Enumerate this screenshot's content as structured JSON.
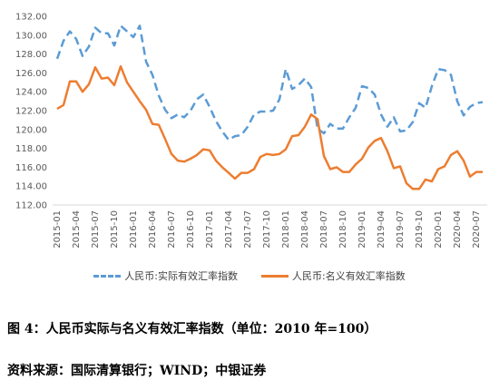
{
  "chart_data": {
    "type": "line",
    "x": [
      "2015-01",
      "2015-02",
      "2015-03",
      "2015-04",
      "2015-05",
      "2015-06",
      "2015-07",
      "2015-08",
      "2015-09",
      "2015-10",
      "2015-11",
      "2015-12",
      "2016-01",
      "2016-02",
      "2016-03",
      "2016-04",
      "2016-05",
      "2016-06",
      "2016-07",
      "2016-08",
      "2016-09",
      "2016-10",
      "2016-11",
      "2016-12",
      "2017-01",
      "2017-02",
      "2017-03",
      "2017-04",
      "2017-05",
      "2017-06",
      "2017-07",
      "2017-08",
      "2017-09",
      "2017-10",
      "2017-11",
      "2017-12",
      "2018-01",
      "2018-02",
      "2018-03",
      "2018-04",
      "2018-05",
      "2018-06",
      "2018-07",
      "2018-08",
      "2018-09",
      "2018-10",
      "2018-11",
      "2018-12",
      "2019-01",
      "2019-02",
      "2019-03",
      "2019-04",
      "2019-05",
      "2019-06",
      "2019-07",
      "2019-08",
      "2019-09",
      "2019-10",
      "2019-11",
      "2019-12",
      "2020-01",
      "2020-02",
      "2020-03",
      "2020-04",
      "2020-05",
      "2020-06",
      "2020-07",
      "2020-08"
    ],
    "tick_labels": [
      "2015-01",
      "2015-04",
      "2015-07",
      "2015-10",
      "2016-01",
      "2016-04",
      "2016-07",
      "2016-10",
      "2017-01",
      "2017-04",
      "2017-07",
      "2017-10",
      "2018-01",
      "2018-04",
      "2018-07",
      "2018-10",
      "2019-01",
      "2019-04",
      "2019-07",
      "2019-10",
      "2020-01",
      "2020-04",
      "2020-07"
    ],
    "y_ticks": [
      "112.00",
      "114.00",
      "116.00",
      "118.00",
      "120.00",
      "122.00",
      "124.00",
      "126.00",
      "128.00",
      "130.00",
      "132.00"
    ],
    "ylim": [
      112,
      132
    ],
    "series": [
      {
        "name": "人民币:实际有效汇率指数",
        "color": "#5b9bd5",
        "dash": true,
        "values": [
          127.5,
          129.4,
          130.4,
          129.6,
          127.8,
          128.8,
          130.8,
          130.2,
          130.2,
          128.9,
          131.0,
          130.4,
          129.8,
          131.0,
          127.2,
          125.8,
          123.6,
          122.1,
          121.2,
          121.6,
          121.3,
          122.0,
          123.2,
          123.7,
          122.4,
          120.9,
          119.8,
          118.9,
          119.3,
          119.4,
          120.3,
          121.6,
          121.9,
          121.9,
          122.0,
          123.2,
          126.4,
          124.3,
          124.7,
          125.4,
          124.5,
          120.1,
          119.6,
          120.6,
          120.1,
          120.1,
          121.3,
          122.3,
          124.6,
          124.4,
          123.7,
          121.6,
          120.3,
          121.3,
          119.8,
          119.9,
          120.8,
          122.8,
          122.3,
          124.6,
          126.4,
          126.3,
          125.8,
          123.0,
          121.5,
          122.4,
          122.8,
          122.9
        ]
      },
      {
        "name": "人民币:名义有效汇率指数",
        "color": "#ed7d31",
        "dash": false,
        "values": [
          122.2,
          122.6,
          125.1,
          125.1,
          124.0,
          124.8,
          126.6,
          125.4,
          125.5,
          124.7,
          126.7,
          125.0,
          124.0,
          123.0,
          122.1,
          120.6,
          120.5,
          119.0,
          117.4,
          116.7,
          116.6,
          116.9,
          117.3,
          117.9,
          117.8,
          116.7,
          116.0,
          115.4,
          114.8,
          115.4,
          115.4,
          115.8,
          117.1,
          117.4,
          117.3,
          117.4,
          117.9,
          119.3,
          119.4,
          120.3,
          121.6,
          121.1,
          117.2,
          115.8,
          116.0,
          115.5,
          115.5,
          116.3,
          116.9,
          118.1,
          118.8,
          119.1,
          117.7,
          115.9,
          116.1,
          114.3,
          113.7,
          113.7,
          114.7,
          114.5,
          115.8,
          116.1,
          117.3,
          117.7,
          116.7,
          115.0,
          115.5,
          115.5
        ]
      }
    ]
  },
  "caption": {
    "figure": "图 4：人民币实际与名义有效汇率指数（单位：2010 年=100）",
    "source": "资料来源：国际清算银行；WIND；中银证券"
  }
}
